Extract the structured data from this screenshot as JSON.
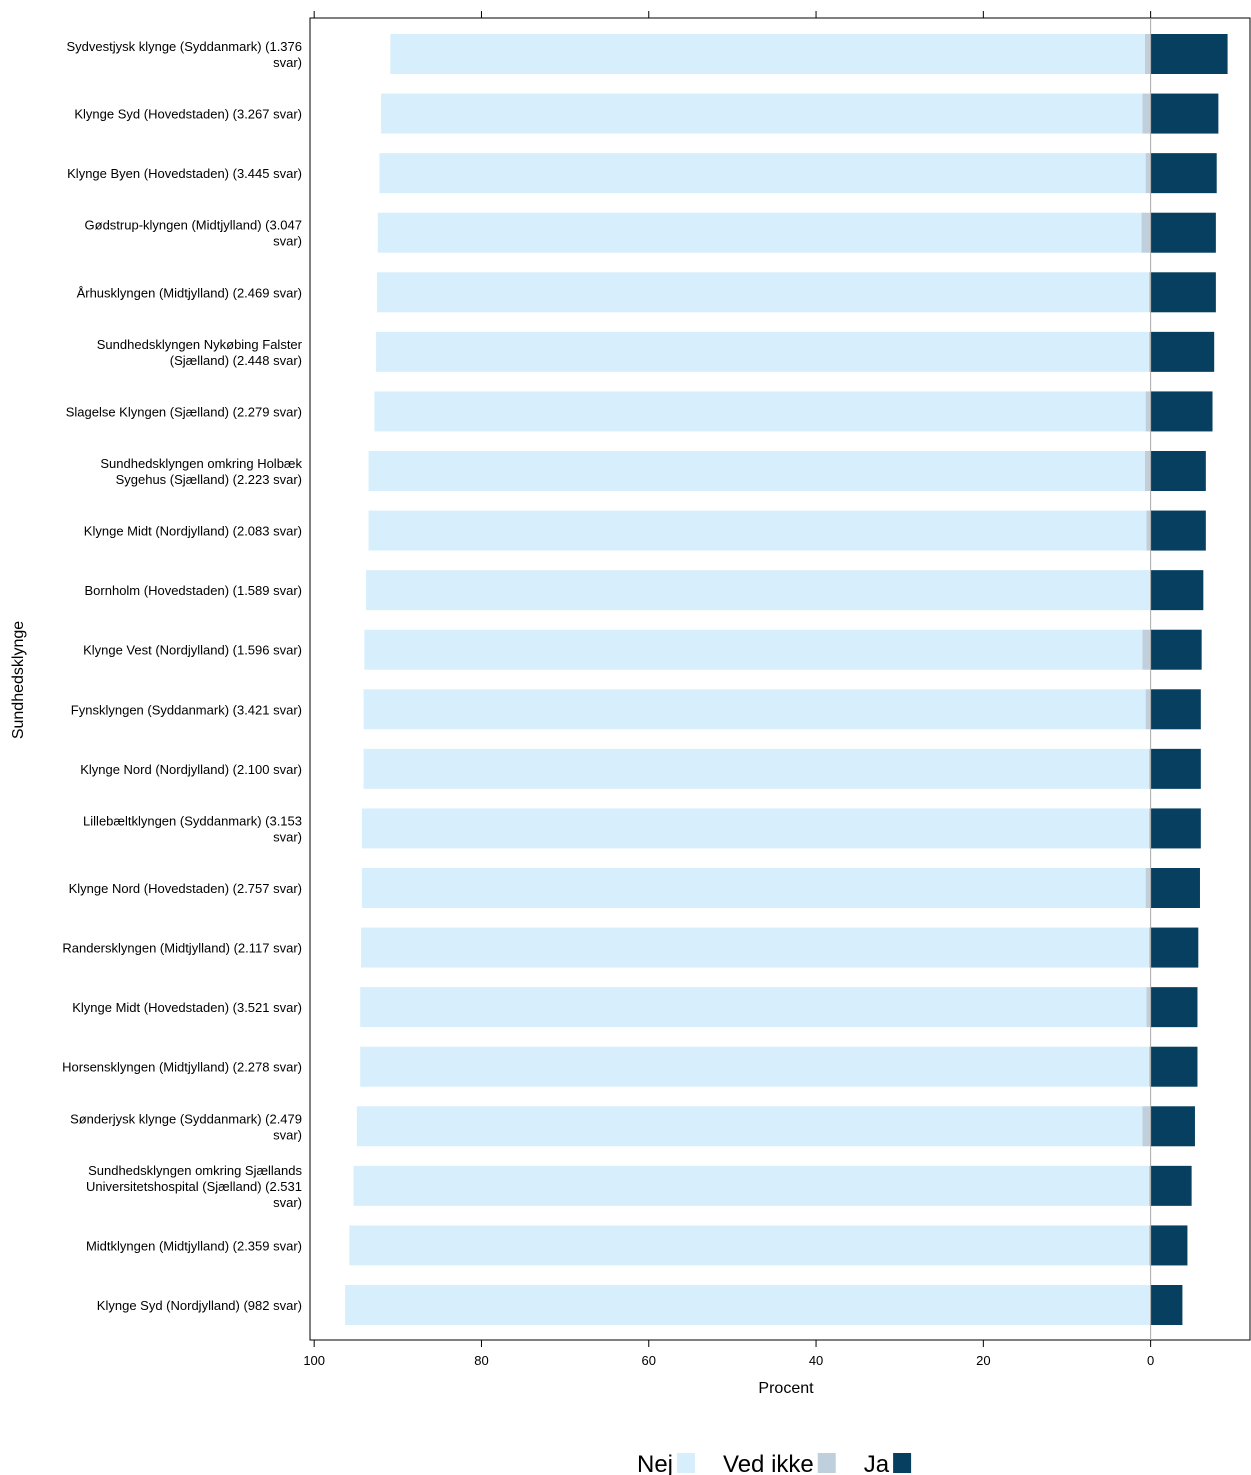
{
  "chart_data": {
    "type": "diverging_bar",
    "xlabel": "Procent",
    "ylabel": "Sundhedsklynge",
    "categories": [
      "Sydvestjysk klynge (Syddanmark) (1.376 svar)",
      "Klynge Syd (Hovedstaden) (3.267 svar)",
      "Klynge Byen (Hovedstaden) (3.445 svar)",
      "Gødstrup-klyngen (Midtjylland) (3.047 svar)",
      "Århusklyngen (Midtjylland) (2.469 svar)",
      "Sundhedsklyngen Nykøbing Falster (Sjælland) (2.448 svar)",
      "Slagelse Klyngen (Sjælland) (2.279 svar)",
      "Sundhedsklyngen omkring Holbæk Sygehus (Sjælland) (2.223 svar)",
      "Klynge Midt (Nordjylland) (2.083 svar)",
      "Bornholm (Hovedstaden) (1.589 svar)",
      "Klynge Vest (Nordjylland) (1.596 svar)",
      "Fynsklyngen (Syddanmark) (3.421 svar)",
      "Klynge Nord (Nordjylland) (2.100 svar)",
      "Lillebæltklyngen (Syddanmark) (3.153 svar)",
      "Klynge Nord (Hovedstaden) (2.757 svar)",
      "Randersklyngen (Midtjylland) (2.117 svar)",
      "Klynge Midt (Hovedstaden) (3.521 svar)",
      "Horsensklyngen (Midtjylland) (2.278 svar)",
      "Sønderjysk klynge (Syddanmark) (2.479 svar)",
      "Sundhedsklyngen omkring Sjællands Universitetshospital (Sjælland) (2.531 svar)",
      "Midtklyngen (Midtjylland) (2.359 svar)",
      "Klynge Syd (Nordjylland) (982 svar)"
    ],
    "series": [
      {
        "name": "Nej",
        "color": "#d7effc",
        "values": [
          90.2,
          91.0,
          91.6,
          91.3,
          92.3,
          92.4,
          92.2,
          92.8,
          93.0,
          93.7,
          93.0,
          93.5,
          93.9,
          94.1,
          93.7,
          94.2,
          94.0,
          94.3,
          93.9,
          95.1,
          95.6,
          96.2
        ]
      },
      {
        "name": "Ved ikke",
        "color": "#bfcfdb",
        "values": [
          0.7,
          1.0,
          0.6,
          1.1,
          0.2,
          0.2,
          0.6,
          0.7,
          0.5,
          0.1,
          1.0,
          0.6,
          0.2,
          0.2,
          0.6,
          0.2,
          0.5,
          0.2,
          1.0,
          0.2,
          0.2,
          0.1
        ]
      },
      {
        "name": "Ja",
        "color": "#063f5f",
        "values": [
          9.2,
          8.1,
          7.9,
          7.8,
          7.8,
          7.6,
          7.4,
          6.6,
          6.6,
          6.3,
          6.1,
          6.0,
          6.0,
          6.0,
          5.9,
          5.7,
          5.6,
          5.6,
          5.3,
          4.9,
          4.4,
          3.8
        ]
      }
    ],
    "xlim": [
      100.5,
      -12
    ],
    "xticks": [
      100,
      80,
      60,
      40,
      20,
      0
    ]
  }
}
